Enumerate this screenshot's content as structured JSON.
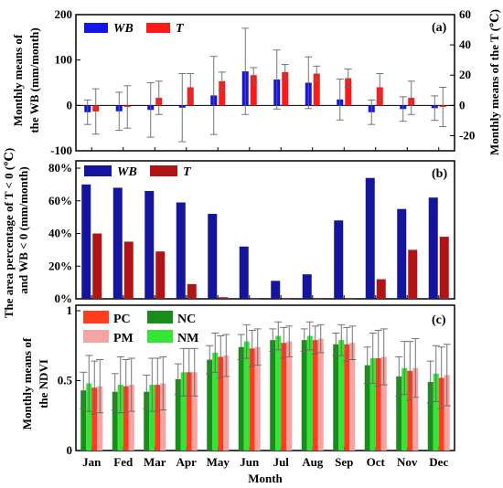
{
  "chart_data": [
    {
      "panel": "(a)",
      "type": "bar",
      "categories": [
        "Jan",
        "Fed",
        "Mar",
        "Apr",
        "May",
        "Jun",
        "Jul",
        "Aug",
        "Sep",
        "Oct",
        "Nov",
        "Dec"
      ],
      "ylabel_line1": "Monthly means of",
      "ylabel_line2": "the WB (mm/month)",
      "y2label": "Monthly means of the T (℃)",
      "ylim": [
        -100,
        200
      ],
      "yticks": [
        -100,
        0,
        100,
        200
      ],
      "y2lim": [
        -30,
        60
      ],
      "y2ticks": [
        -20,
        0,
        20,
        40,
        60
      ],
      "legend": [
        {
          "name": "WB",
          "color": "#1414e6"
        },
        {
          "name": "T",
          "color": "#ff1a1a"
        }
      ],
      "series": [
        {
          "name": "WB",
          "axis": "left",
          "color": "#1414e6",
          "values": [
            -15,
            -13,
            -10,
            -5,
            22,
            75,
            57,
            50,
            13,
            -15,
            -8,
            -6
          ],
          "error": [
            27,
            42,
            60,
            75,
            86,
            95,
            65,
            57,
            45,
            27,
            27,
            27
          ]
        },
        {
          "name": "T",
          "axis": "right",
          "color": "#ff1a1a",
          "values": [
            -4,
            -1,
            5,
            12,
            16,
            20,
            22,
            21,
            18,
            12,
            5,
            -1
          ],
          "error": [
            15,
            14,
            11,
            9,
            6,
            5,
            5,
            5,
            6,
            9,
            11,
            13
          ]
        }
      ]
    },
    {
      "panel": "(b)",
      "type": "bar",
      "categories": [
        "Jan",
        "Fed",
        "Mar",
        "Apr",
        "May",
        "Jun",
        "Jul",
        "Aug",
        "Sep",
        "Oct",
        "Nov",
        "Dec"
      ],
      "ylabel_line1": "The area percentage of T < 0 (℃)",
      "ylabel_line2": "and WB < 0 (mm/month)",
      "ylim": [
        0,
        80
      ],
      "yticks": [
        0,
        20,
        40,
        60,
        80
      ],
      "ytick_labels": [
        "0%",
        "20%",
        "40%",
        "60%",
        "80%"
      ],
      "legend": [
        {
          "name": "WB",
          "color": "#14149c"
        },
        {
          "name": "T",
          "color": "#b01414"
        }
      ],
      "series": [
        {
          "name": "WB",
          "color": "#14149c",
          "values": [
            70,
            68,
            66,
            59,
            52,
            32,
            11,
            15,
            48,
            74,
            55,
            62
          ]
        },
        {
          "name": "T",
          "color": "#b01414",
          "values": [
            40,
            35,
            29,
            9,
            1,
            0,
            0,
            0,
            0,
            12,
            30,
            38
          ]
        }
      ]
    },
    {
      "panel": "(c)",
      "type": "bar",
      "categories": [
        "Jan",
        "Fed",
        "Mar",
        "Apr",
        "May",
        "Jun",
        "Jul",
        "Aug",
        "Sep",
        "Oct",
        "Nov",
        "Dec"
      ],
      "ylabel_line1": "Monthly means of",
      "ylabel_line2": "the NDVI",
      "xlabel": "Month",
      "ylim": [
        0,
        1
      ],
      "yticks": [
        0,
        0.5,
        1
      ],
      "ytick_labels": [
        "0",
        "0.5",
        "1"
      ],
      "legend": [
        {
          "name": "PC",
          "color": "#ff3d1f"
        },
        {
          "name": "NC",
          "color": "#1a8c1a"
        },
        {
          "name": "PM",
          "color": "#f5a3a3"
        },
        {
          "name": "NM",
          "color": "#33e633"
        }
      ],
      "series": [
        {
          "name": "NC",
          "color": "#1a8c1a",
          "values": [
            0.43,
            0.42,
            0.42,
            0.51,
            0.65,
            0.74,
            0.79,
            0.79,
            0.76,
            0.61,
            0.53,
            0.49
          ],
          "error": [
            0.13,
            0.13,
            0.12,
            0.11,
            0.1,
            0.09,
            0.08,
            0.08,
            0.08,
            0.13,
            0.14,
            0.15
          ]
        },
        {
          "name": "NM",
          "color": "#33e633",
          "values": [
            0.48,
            0.47,
            0.47,
            0.56,
            0.7,
            0.78,
            0.82,
            0.82,
            0.79,
            0.66,
            0.59,
            0.55
          ],
          "error": [
            0.2,
            0.2,
            0.19,
            0.17,
            0.14,
            0.12,
            0.1,
            0.1,
            0.11,
            0.18,
            0.19,
            0.2
          ]
        },
        {
          "name": "PC",
          "color": "#ff3d1f",
          "values": [
            0.45,
            0.46,
            0.47,
            0.56,
            0.67,
            0.73,
            0.77,
            0.79,
            0.76,
            0.66,
            0.57,
            0.52
          ],
          "error": [
            0.19,
            0.19,
            0.19,
            0.17,
            0.15,
            0.13,
            0.11,
            0.1,
            0.12,
            0.2,
            0.21,
            0.22
          ]
        },
        {
          "name": "PM",
          "color": "#f5a3a3",
          "values": [
            0.46,
            0.47,
            0.48,
            0.56,
            0.68,
            0.74,
            0.78,
            0.8,
            0.77,
            0.67,
            0.59,
            0.54
          ],
          "error": [
            0.19,
            0.19,
            0.19,
            0.17,
            0.15,
            0.13,
            0.11,
            0.1,
            0.12,
            0.2,
            0.21,
            0.22
          ]
        }
      ]
    }
  ]
}
